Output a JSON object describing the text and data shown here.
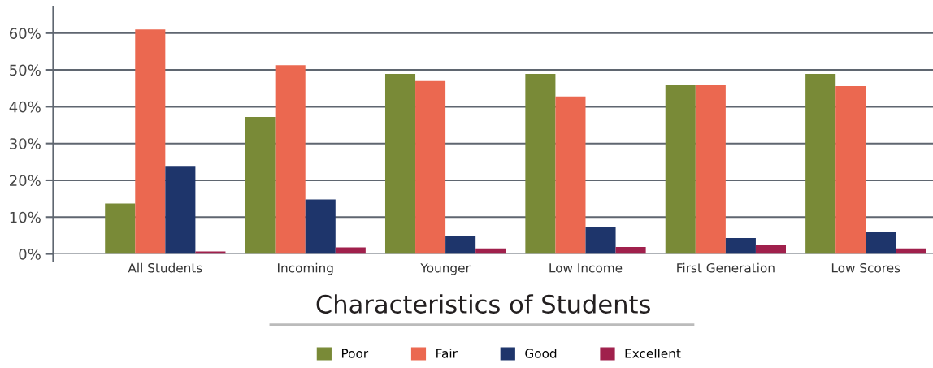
{
  "chart_data": {
    "type": "bar",
    "title": "Characteristics of Students",
    "categories": [
      "All Students",
      "Incoming",
      "Younger",
      "Low Income",
      "First Generation",
      "Low Scores"
    ],
    "series": [
      {
        "name": "Poor",
        "color": "#798a37",
        "values": [
          13.7,
          37.2,
          48.9,
          48.9,
          45.8,
          48.9
        ]
      },
      {
        "name": "Fair",
        "color": "#eb6850",
        "values": [
          61,
          51.3,
          47.0,
          42.8,
          45.8,
          45.6
        ]
      },
      {
        "name": "Good",
        "color": "#1e356b",
        "values": [
          23.9,
          14.8,
          5.0,
          7.4,
          4.3,
          6.0
        ]
      },
      {
        "name": "Excellent",
        "color": "#a0204c",
        "values": [
          0.7,
          1.8,
          1.5,
          1.9,
          2.5,
          1.5
        ]
      }
    ],
    "ylim": [
      0,
      67
    ],
    "yticks": [
      {
        "value": 0,
        "label": "0%"
      },
      {
        "value": 10,
        "label": "10%"
      },
      {
        "value": 20,
        "label": "20%"
      },
      {
        "value": 30,
        "label": "30%"
      },
      {
        "value": 40,
        "label": "40%"
      },
      {
        "value": 50,
        "label": "50%"
      },
      {
        "value": 60,
        "label": "60%"
      }
    ],
    "grid": "y",
    "legend": "bottom"
  }
}
